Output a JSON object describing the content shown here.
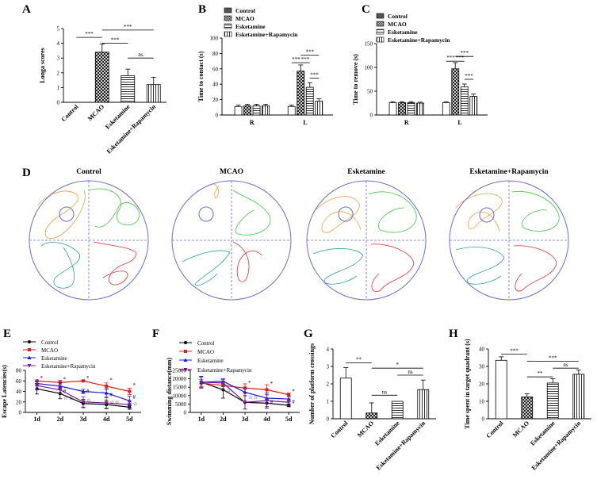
{
  "colors": {
    "control": "#000000",
    "mcao": "#e21a1a",
    "esketamine": "#1a1ad6",
    "rapamycin": "#7a1a9a",
    "trace_orange": "#f0a040",
    "trace_green": "#3cc83c",
    "trace_red": "#e03030",
    "trace_teal": "#2aa39a",
    "pool": "#6b6bd6"
  },
  "patterns": [
    "hatch-none",
    "hatch-check",
    "hatch-horizontal",
    "hatch-vertical"
  ],
  "chart_data": [
    {
      "panel": "A",
      "type": "bar",
      "categories": [
        "Control",
        "MCAO",
        "Esketamine",
        "Esketamine+Rapamycin"
      ],
      "values": [
        0,
        3.4,
        1.8,
        1.2
      ],
      "errors": [
        0,
        0.55,
        0.45,
        0.5
      ],
      "ylabel": "Longa scores",
      "ylim": [
        0,
        5
      ],
      "yticks": [
        "0",
        "1",
        "2",
        "3",
        "4",
        "5"
      ],
      "sig": [
        {
          "a": 0,
          "b": 1,
          "text": "***",
          "level": 4.4
        },
        {
          "a": 1,
          "b": 2,
          "text": "***",
          "level": 4.0
        },
        {
          "a": 1,
          "b": 3,
          "text": "***",
          "level": 4.9
        },
        {
          "a": 2,
          "b": 3,
          "text": "ns",
          "level": 3.0
        }
      ]
    },
    {
      "panel": "B",
      "type": "bar",
      "groups": [
        "R",
        "L"
      ],
      "series": [
        {
          "name": "Control",
          "values": [
            11,
            11
          ],
          "errors": [
            2,
            2
          ]
        },
        {
          "name": "MCAO",
          "values": [
            12,
            57
          ],
          "errors": [
            2,
            8
          ]
        },
        {
          "name": "Esketamine",
          "values": [
            12,
            36
          ],
          "errors": [
            2,
            6
          ]
        },
        {
          "name": "Esketamine+Rapamycin",
          "values": [
            12,
            18
          ],
          "errors": [
            2,
            3
          ]
        }
      ],
      "ylabel": "Time to contact (s)",
      "ylim": [
        0,
        100
      ],
      "yticks": [
        "0",
        "20",
        "40",
        "60",
        "80",
        "100"
      ],
      "sig": [
        {
          "a": 0,
          "b": 1,
          "text": "***",
          "level": 68
        },
        {
          "a": 1,
          "b": 2,
          "text": "***",
          "level": 68
        },
        {
          "a": 1,
          "b": 3,
          "text": "***",
          "level": 78
        },
        {
          "a": 2,
          "b": 3,
          "text": "***",
          "level": 48
        }
      ]
    },
    {
      "panel": "C",
      "type": "bar",
      "groups": [
        "R",
        "L"
      ],
      "series": [
        {
          "name": "Control",
          "values": [
            26,
            26
          ],
          "errors": [
            2,
            2
          ]
        },
        {
          "name": "MCAO",
          "values": [
            26,
            97
          ],
          "errors": [
            2,
            13
          ]
        },
        {
          "name": "Esketamine",
          "values": [
            26,
            59
          ],
          "errors": [
            2,
            6
          ]
        },
        {
          "name": "Esketamine+Rapamycin",
          "values": [
            25,
            39
          ],
          "errors": [
            2,
            5
          ]
        }
      ],
      "ylabel": "Time to remove (s)",
      "ylim": [
        0,
        150
      ],
      "yticks": [
        "0",
        "50",
        "100",
        "150"
      ],
      "sig": [
        {
          "a": 0,
          "b": 1,
          "text": "***",
          "level": 113
        },
        {
          "a": 1,
          "b": 2,
          "text": "***",
          "level": 113
        },
        {
          "a": 1,
          "b": 3,
          "text": "***",
          "level": 123
        },
        {
          "a": 2,
          "b": 3,
          "text": "***",
          "level": 75
        }
      ]
    },
    {
      "panel": "E",
      "type": "line",
      "x": [
        "1d",
        "2d",
        "3d",
        "4d",
        "5d"
      ],
      "ylabel": "Escape Latencies(s)",
      "ylim": [
        0,
        80
      ],
      "yticks": [
        "0",
        "20",
        "40",
        "60",
        "80"
      ],
      "series": [
        {
          "name": "Control",
          "values": [
            45,
            36,
            17,
            15,
            10
          ],
          "errors": [
            10,
            10,
            8,
            8,
            4
          ]
        },
        {
          "name": "MCAO",
          "values": [
            60,
            57,
            60,
            50,
            40
          ],
          "errors": [
            0,
            4,
            1,
            6,
            6
          ]
        },
        {
          "name": "Esketamine",
          "values": [
            55,
            50,
            40,
            37,
            22
          ],
          "errors": [
            5,
            7,
            4,
            8,
            9
          ]
        },
        {
          "name": "Esketamine+Rapamycin",
          "values": [
            51,
            43,
            20,
            18,
            15
          ],
          "errors": [
            8,
            7,
            10,
            10,
            7
          ]
        }
      ],
      "annotations": [
        {
          "x": "1d",
          "y": 62,
          "text": "*"
        },
        {
          "x": "2d",
          "y": 60,
          "text": "*"
        },
        {
          "x": "3d",
          "y": 62,
          "text": "*"
        },
        {
          "x": "4d",
          "y": 58,
          "text": "*"
        },
        {
          "x": "5d",
          "y": 48,
          "text": "*"
        },
        {
          "x": "2d",
          "y": 37,
          "text": "#"
        },
        {
          "x": "3d",
          "y": 37,
          "text": "#"
        },
        {
          "x": "4d",
          "y": 30,
          "text": "#"
        },
        {
          "x": "5d",
          "y": 26,
          "text": "#"
        },
        {
          "x": "2d",
          "y": 24,
          "text": "☆☆"
        },
        {
          "x": "3d",
          "y": 20,
          "text": "☆"
        },
        {
          "x": "4d",
          "y": 16,
          "text": "☆☆"
        },
        {
          "x": "5d",
          "y": 13,
          "text": "☆"
        }
      ]
    },
    {
      "panel": "F",
      "type": "line",
      "x": [
        "1d",
        "2d",
        "3d",
        "4d",
        "5d"
      ],
      "ylabel": "Swimming distance(mm)",
      "ylim": [
        0,
        25000
      ],
      "yticks": [
        "0",
        "5000",
        "10000",
        "15000",
        "20000",
        "25000"
      ],
      "series": [
        {
          "name": "Control",
          "values": [
            18000,
            13500,
            6000,
            5500,
            4200
          ],
          "errors": [
            3500,
            5000,
            4000,
            3000,
            800
          ]
        },
        {
          "name": "MCAO",
          "values": [
            17500,
            16000,
            14500,
            13500,
            10500
          ],
          "errors": [
            2000,
            2500,
            2500,
            3000,
            1000
          ]
        },
        {
          "name": "Esketamine",
          "values": [
            18000,
            18500,
            12000,
            8500,
            8000
          ],
          "errors": [
            3500,
            1500,
            2000,
            3000,
            1500
          ]
        },
        {
          "name": "Esketamine+Rapamycin",
          "values": [
            18000,
            17500,
            6000,
            7000,
            6000
          ],
          "errors": [
            3000,
            2000,
            4000,
            3500,
            2000
          ]
        }
      ],
      "annotations": [
        {
          "x": "3d",
          "y": 16500,
          "text": "*"
        },
        {
          "x": "4d",
          "y": 16000,
          "text": "*"
        },
        {
          "x": "5d",
          "y": 11500,
          "text": "*"
        },
        {
          "x": "2d",
          "y": 12000,
          "text": "☆"
        },
        {
          "x": "3d",
          "y": 8000,
          "text": "☆☆"
        },
        {
          "x": "4d",
          "y": 5000,
          "text": "#"
        },
        {
          "x": "5d",
          "y": 5200,
          "text": "#"
        }
      ]
    },
    {
      "panel": "G",
      "type": "bar",
      "categories": [
        "Control",
        "MCAO",
        "Esketamine",
        "Esketamine+Rapamycin"
      ],
      "values": [
        2.33,
        0.33,
        1.0,
        1.67
      ],
      "errors": [
        0.6,
        0.58,
        0,
        0.55
      ],
      "ylabel": "Number of platform crossings",
      "ylim": [
        0,
        4
      ],
      "yticks": [
        "0",
        "1",
        "2",
        "3",
        "4"
      ],
      "sig": [
        {
          "a": 0,
          "b": 1,
          "text": "**",
          "level": 3.2
        },
        {
          "a": 1,
          "b": 2,
          "text": "ns",
          "level": 1.35
        },
        {
          "a": 1,
          "b": 3,
          "text": "*",
          "level": 2.9
        },
        {
          "a": 2,
          "b": 3,
          "text": "ns",
          "level": 2.5
        }
      ]
    },
    {
      "panel": "H",
      "type": "bar",
      "categories": [
        "Control",
        "MCAO",
        "Esketamine",
        "Esketamine+Rapamycin"
      ],
      "values": [
        33.5,
        12.5,
        20.5,
        25.5
      ],
      "errors": [
        2,
        1.8,
        2.5,
        2.5
      ],
      "ylabel": "Time spent in target quadrant (s)",
      "ylim": [
        0,
        40
      ],
      "yticks": [
        "0",
        "10",
        "20",
        "30",
        "40"
      ],
      "sig": [
        {
          "a": 0,
          "b": 1,
          "text": "***",
          "level": 37
        },
        {
          "a": 1,
          "b": 2,
          "text": "**",
          "level": 24
        },
        {
          "a": 1,
          "b": 3,
          "text": "***",
          "level": 33
        },
        {
          "a": 2,
          "b": 3,
          "text": "ns",
          "level": 29
        }
      ]
    }
  ],
  "panel_labels": {
    "A": "A",
    "B": "B",
    "C": "C",
    "D": "D",
    "E": "E",
    "F": "F",
    "G": "G",
    "H": "H"
  },
  "legend_names": [
    "Control",
    "MCAO",
    "Esketamine",
    "Esketamine+Rapamycin"
  ],
  "traces": {
    "titles": [
      "Control",
      "MCAO",
      "Esketamine",
      "Esketamine+Rapamycin"
    ]
  }
}
